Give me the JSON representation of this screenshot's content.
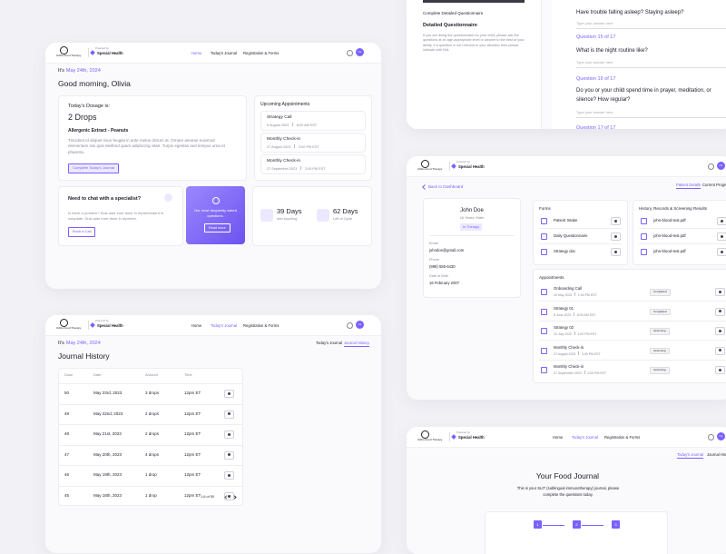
{
  "brand": {
    "name": "Gibbs Food Therapy",
    "powered_by": "Powered by",
    "partner": "Special Health"
  },
  "nav": [
    "Home",
    "Today's Journal",
    "Registration & Forms"
  ],
  "avatar": "OL",
  "today": {
    "prefix": "It's",
    "date": "May 24th, 2024"
  },
  "dashboard": {
    "greeting": "Good morning, Olivia",
    "dosage": {
      "label": "Today's Dosage is:",
      "amount": "2 Drops",
      "extract": "Allergenic Extract - Peanuts",
      "text": "Tincidunt id aliquet risus feugiat in ante metus dictum at. Ornare aenean euismod elementum nisi quis eleifend quam adipiscing vitae. Turpis egestas sed tempus urna et pharetra.",
      "button": "Complete Today's Journal"
    },
    "appointments": {
      "title": "Upcoming Appointments",
      "items": [
        {
          "name": "Strategy Call",
          "date": "6 August 2023",
          "time": "8:00 AM EST"
        },
        {
          "name": "Monthly Check-in",
          "date": "27 August 2023",
          "time": "3:00 PM EST"
        },
        {
          "name": "Monthly Check-in",
          "date": "27 September 2023",
          "time": "2:00 PM EST"
        }
      ]
    },
    "chat": {
      "title": "Need to chat with a specialist?",
      "text": "Is there a problem? Duis aute irure dolor in reprehenderit in voluptate. Duis aute irure dolor in repreher.",
      "button": "Book a Call"
    },
    "faq": {
      "text": "Our most frequently asked questions.",
      "button": "Read more"
    },
    "stats": [
      {
        "value": "39 Days",
        "label": "skin touching"
      },
      {
        "value": "62 Days",
        "label": "Left of Cycle"
      }
    ]
  },
  "journal": {
    "title": "Journal History",
    "tabs": [
      "Today's Journal",
      "Journal History"
    ],
    "columns": [
      "Dose",
      "Date",
      "Amount",
      "Time"
    ],
    "rows": [
      [
        50,
        "May 23rd, 2023",
        "3 drops",
        "12pm ET"
      ],
      [
        49,
        "May 22nd, 2023",
        "2 drops",
        "12pm ET"
      ],
      [
        48,
        "May 21st, 2023",
        "2 drops",
        "12pm ET"
      ],
      [
        47,
        "May 20th, 2023",
        "4 drops",
        "12pm ET"
      ],
      [
        46,
        "May 19th, 2023",
        "1 drop",
        "12pm ET"
      ],
      [
        45,
        "May 18th, 2023",
        "1 drop",
        "12pm ET"
      ]
    ],
    "pagination": "1-6 of 50"
  },
  "questionnaire": {
    "link": "Complete Detailed Questionnaire",
    "title": "Detailed Questionnaire",
    "text": "If you are doing the questionnaire for your child, please ask the questions at an age-appropriate level or answer to the best of your ability. If a question is not relevant to your situation then please indicate with N/A.",
    "items": [
      {
        "label": null,
        "question": "Have trouble falling asleep? Staying asleep?",
        "placeholder": "Type your answer here"
      },
      {
        "label": "Question 15 of 17",
        "question": "What is the night routine like?",
        "placeholder": "Type your answer here"
      },
      {
        "label": "Question 16 of 17",
        "question": "Do you or your child spend time in prayer, meditation, or silence? How regular?",
        "placeholder": "Type your answer here"
      },
      {
        "label": "Question 17 of 17",
        "question": null,
        "placeholder": null
      }
    ]
  },
  "patient": {
    "back": "Back to Dashboard",
    "tabs": [
      "Patient Details",
      "Current Progress"
    ],
    "name": "John Doe",
    "info": "16 Years, Male",
    "status": "In Therapy",
    "fields": [
      {
        "label": "Email",
        "value": "johndoe@gmail.com"
      },
      {
        "label": "Phone",
        "value": "(999) 555-6430"
      },
      {
        "label": "Date of Birth",
        "value": "16 February 2007"
      }
    ],
    "forms": {
      "title": "Forms",
      "items": [
        "Patient Intake",
        "Daily Questionnaire",
        "Strategy doc"
      ]
    },
    "records": {
      "title": "History, Records & Screening Results",
      "items": [
        "john-blood-test.pdf",
        "john-blood-test.pdf",
        "john-blood-test.pdf"
      ]
    },
    "appointments": {
      "title": "Appointments",
      "items": [
        {
          "name": "Onboarding Call",
          "date": "26 May 2023",
          "time": "1:00 PM EST",
          "status": "Completed"
        },
        {
          "name": "Strategy 01",
          "date": "8 June 2023",
          "time": "8:00 AM EST",
          "status": "Completed"
        },
        {
          "name": "Strategy 02",
          "date": "20 July 2023",
          "time": "1:00 PM EST",
          "status": "Upcoming"
        },
        {
          "name": "Monthly Check-in",
          "date": "27 August 2023",
          "time": "3:00 PM EST",
          "status": "Upcoming"
        },
        {
          "name": "Monthly Check-in",
          "date": "27 September 2023",
          "time": "2:00 PM EST",
          "status": "Upcoming"
        }
      ]
    }
  },
  "food_journal": {
    "title": "Your Food Journal",
    "text": "This is your SLIT (sublingual immunotherapy) journal, please complete the questions today.",
    "steps": [
      "1",
      "2",
      "3"
    ]
  }
}
